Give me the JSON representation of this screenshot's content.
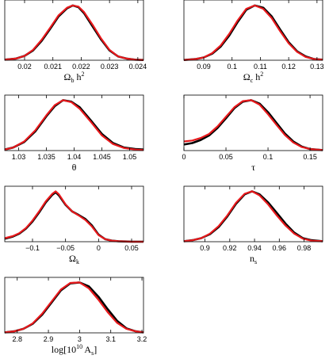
{
  "chart_data": [
    {
      "type": "line",
      "xlabel": "Ω_b h^2",
      "xlabel_parts": [
        {
          "t": "Ω",
          "s": ""
        },
        {
          "t": "b",
          "s": "sub"
        },
        {
          "t": " h",
          "s": ""
        },
        {
          "t": "2",
          "s": "sup"
        }
      ],
      "xlim": [
        0.0193,
        0.0242
      ],
      "xticks": [
        0.02,
        0.021,
        0.022,
        0.023,
        0.024
      ],
      "xtick_labels": [
        "0.02",
        "0.021",
        "0.022",
        "0.023",
        "0.024"
      ],
      "ylim": [
        0,
        1.1
      ],
      "series": [
        {
          "color": "#000000",
          "x": [
            0.0193,
            0.0197,
            0.02,
            0.0203,
            0.0206,
            0.0209,
            0.0212,
            0.0215,
            0.0217,
            0.0219,
            0.0221,
            0.0224,
            0.0227,
            0.023,
            0.0233,
            0.0236,
            0.0239,
            0.0242
          ],
          "y": [
            0.01,
            0.03,
            0.08,
            0.18,
            0.35,
            0.57,
            0.8,
            0.95,
            1.0,
            0.97,
            0.86,
            0.62,
            0.38,
            0.18,
            0.07,
            0.03,
            0.01,
            0.005
          ]
        },
        {
          "color": "#e8191c",
          "x": [
            0.0193,
            0.0197,
            0.02,
            0.0203,
            0.0206,
            0.0209,
            0.0212,
            0.0215,
            0.0217,
            0.0219,
            0.0221,
            0.0224,
            0.0227,
            0.023,
            0.0233,
            0.0236,
            0.0239,
            0.0242
          ],
          "y": [
            0.01,
            0.03,
            0.08,
            0.19,
            0.37,
            0.59,
            0.82,
            0.96,
            1.0,
            0.98,
            0.88,
            0.65,
            0.4,
            0.19,
            0.07,
            0.03,
            0.01,
            0.005
          ]
        }
      ]
    },
    {
      "type": "line",
      "xlabel": "Ω_c h^2",
      "xlabel_parts": [
        {
          "t": "Ω",
          "s": ""
        },
        {
          "t": "c",
          "s": "sub"
        },
        {
          "t": " h",
          "s": ""
        },
        {
          "t": "2",
          "s": "sup"
        }
      ],
      "xlim": [
        0.083,
        0.132
      ],
      "xticks": [
        0.09,
        0.1,
        0.11,
        0.12,
        0.13
      ],
      "xtick_labels": [
        "0.09",
        "0.1",
        "0.11",
        "0.12",
        "0.13"
      ],
      "ylim": [
        0,
        1.1
      ],
      "series": [
        {
          "color": "#000000",
          "x": [
            0.083,
            0.087,
            0.09,
            0.093,
            0.096,
            0.099,
            0.102,
            0.105,
            0.108,
            0.111,
            0.114,
            0.117,
            0.12,
            0.123,
            0.126,
            0.129,
            0.132
          ],
          "y": [
            0.005,
            0.02,
            0.05,
            0.12,
            0.25,
            0.45,
            0.7,
            0.92,
            1.0,
            0.96,
            0.8,
            0.56,
            0.33,
            0.16,
            0.07,
            0.02,
            0.01
          ]
        },
        {
          "color": "#e8191c",
          "x": [
            0.083,
            0.087,
            0.09,
            0.093,
            0.096,
            0.099,
            0.102,
            0.105,
            0.108,
            0.111,
            0.114,
            0.117,
            0.12,
            0.123,
            0.126,
            0.129,
            0.132
          ],
          "y": [
            0.005,
            0.02,
            0.05,
            0.13,
            0.27,
            0.48,
            0.73,
            0.94,
            1.0,
            0.94,
            0.77,
            0.53,
            0.31,
            0.15,
            0.06,
            0.02,
            0.01
          ]
        }
      ]
    },
    {
      "type": "line",
      "xlabel": "θ",
      "xlabel_parts": [
        {
          "t": "θ",
          "s": ""
        }
      ],
      "xlim": [
        1.0275,
        1.0525
      ],
      "xticks": [
        1.03,
        1.035,
        1.04,
        1.045,
        1.05
      ],
      "xtick_labels": [
        "1.03",
        "1.035",
        "1.04",
        "1.045",
        "1.05"
      ],
      "ylim": [
        0,
        1.1
      ],
      "series": [
        {
          "color": "#000000",
          "x": [
            1.0275,
            1.029,
            1.031,
            1.033,
            1.035,
            1.0365,
            1.038,
            1.0395,
            1.041,
            1.043,
            1.045,
            1.047,
            1.049,
            1.051,
            1.0525
          ],
          "y": [
            0.02,
            0.06,
            0.17,
            0.38,
            0.68,
            0.88,
            1.0,
            0.97,
            0.86,
            0.6,
            0.33,
            0.15,
            0.06,
            0.03,
            0.02
          ]
        },
        {
          "color": "#e8191c",
          "x": [
            1.0275,
            1.029,
            1.031,
            1.033,
            1.035,
            1.0365,
            1.038,
            1.0395,
            1.041,
            1.043,
            1.045,
            1.047,
            1.049,
            1.051,
            1.0525
          ],
          "y": [
            0.02,
            0.06,
            0.18,
            0.4,
            0.7,
            0.9,
            1.0,
            0.96,
            0.83,
            0.57,
            0.3,
            0.13,
            0.05,
            0.02,
            0.01
          ]
        }
      ]
    },
    {
      "type": "line",
      "xlabel": "τ",
      "xlabel_parts": [
        {
          "t": "τ",
          "s": ""
        }
      ],
      "xlim": [
        0,
        0.165
      ],
      "xticks": [
        0,
        0.05,
        0.1,
        0.15
      ],
      "xtick_labels": [
        "0",
        "0.05",
        "0.1",
        "0.15"
      ],
      "ylim": [
        0,
        1.1
      ],
      "series": [
        {
          "color": "#000000",
          "x": [
            0,
            0.01,
            0.02,
            0.03,
            0.04,
            0.05,
            0.06,
            0.07,
            0.08,
            0.09,
            0.1,
            0.11,
            0.12,
            0.13,
            0.14,
            0.15,
            0.165
          ],
          "y": [
            0.12,
            0.15,
            0.21,
            0.3,
            0.45,
            0.64,
            0.84,
            0.97,
            1.0,
            0.93,
            0.76,
            0.55,
            0.34,
            0.18,
            0.08,
            0.03,
            0.01
          ]
        },
        {
          "color": "#e8191c",
          "x": [
            0,
            0.01,
            0.02,
            0.03,
            0.04,
            0.05,
            0.06,
            0.07,
            0.08,
            0.09,
            0.1,
            0.11,
            0.12,
            0.13,
            0.14,
            0.15,
            0.165
          ],
          "y": [
            0.18,
            0.2,
            0.25,
            0.33,
            0.48,
            0.67,
            0.86,
            0.98,
            1.0,
            0.91,
            0.72,
            0.51,
            0.31,
            0.16,
            0.07,
            0.03,
            0.01
          ]
        }
      ]
    },
    {
      "type": "line",
      "xlabel": "Ω_k",
      "xlabel_parts": [
        {
          "t": "Ω",
          "s": ""
        },
        {
          "t": "k",
          "s": "sub"
        }
      ],
      "xlim": [
        -0.142,
        0.068
      ],
      "xticks": [
        -0.1,
        -0.05,
        0,
        0.05
      ],
      "xtick_labels": [
        "−0.1",
        "−0.05",
        "0",
        "0.05"
      ],
      "ylim": [
        0,
        1.1
      ],
      "series": [
        {
          "color": "#000000",
          "x": [
            -0.142,
            -0.13,
            -0.12,
            -0.11,
            -0.1,
            -0.09,
            -0.08,
            -0.07,
            -0.065,
            -0.06,
            -0.05,
            -0.04,
            -0.03,
            -0.02,
            -0.01,
            0,
            0.01,
            0.02,
            0.03,
            0.04,
            0.05,
            0.068
          ],
          "y": [
            0.06,
            0.1,
            0.16,
            0.26,
            0.4,
            0.58,
            0.78,
            0.93,
            0.98,
            0.92,
            0.73,
            0.6,
            0.53,
            0.45,
            0.32,
            0.14,
            0.05,
            0.02,
            0.01,
            0.005,
            0.0,
            0.0
          ]
        },
        {
          "color": "#e8191c",
          "x": [
            -0.142,
            -0.13,
            -0.12,
            -0.11,
            -0.1,
            -0.09,
            -0.08,
            -0.07,
            -0.065,
            -0.06,
            -0.05,
            -0.04,
            -0.03,
            -0.02,
            -0.01,
            0,
            0.01,
            0.02,
            0.03,
            0.04,
            0.05,
            0.068
          ],
          "y": [
            0.07,
            0.11,
            0.17,
            0.27,
            0.42,
            0.6,
            0.8,
            0.95,
            1.0,
            0.94,
            0.74,
            0.6,
            0.52,
            0.43,
            0.3,
            0.13,
            0.05,
            0.02,
            0.01,
            0.005,
            0.0,
            0.0
          ]
        }
      ]
    },
    {
      "type": "line",
      "xlabel": "n_s",
      "xlabel_parts": [
        {
          "t": "n",
          "s": ""
        },
        {
          "t": "s",
          "s": "sub"
        }
      ],
      "xlim": [
        0.883,
        0.995
      ],
      "xticks": [
        0.9,
        0.92,
        0.94,
        0.96,
        0.98
      ],
      "xtick_labels": [
        "0.9",
        "0.92",
        "0.94",
        "0.96",
        "0.98"
      ],
      "ylim": [
        0,
        1.1
      ],
      "series": [
        {
          "color": "#000000",
          "x": [
            0.883,
            0.89,
            0.897,
            0.904,
            0.911,
            0.918,
            0.925,
            0.932,
            0.938,
            0.944,
            0.951,
            0.958,
            0.965,
            0.972,
            0.979,
            0.986,
            0.995
          ],
          "y": [
            0.01,
            0.03,
            0.07,
            0.15,
            0.29,
            0.5,
            0.75,
            0.94,
            1.0,
            0.94,
            0.78,
            0.57,
            0.36,
            0.18,
            0.07,
            0.03,
            0.01
          ]
        },
        {
          "color": "#e8191c",
          "x": [
            0.883,
            0.89,
            0.897,
            0.904,
            0.911,
            0.918,
            0.925,
            0.932,
            0.938,
            0.944,
            0.951,
            0.958,
            0.965,
            0.972,
            0.979,
            0.986,
            0.995
          ],
          "y": [
            0.01,
            0.03,
            0.07,
            0.16,
            0.31,
            0.52,
            0.77,
            0.95,
            1.0,
            0.92,
            0.74,
            0.52,
            0.32,
            0.16,
            0.06,
            0.02,
            0.01
          ]
        }
      ]
    },
    {
      "type": "line",
      "xlabel": "log[10^10 A_s]",
      "xlabel_parts": [
        {
          "t": "log[10",
          "s": ""
        },
        {
          "t": "10",
          "s": "sup"
        },
        {
          "t": " A",
          "s": ""
        },
        {
          "t": "s",
          "s": "sub"
        },
        {
          "t": "]",
          "s": ""
        }
      ],
      "xlim": [
        2.76,
        3.205
      ],
      "xticks": [
        2.8,
        2.9,
        3.0,
        3.1,
        3.2
      ],
      "xtick_labels": [
        "2.8",
        "2.9",
        "3",
        "3.1",
        "3.2"
      ],
      "ylim": [
        0,
        1.1
      ],
      "series": [
        {
          "color": "#000000",
          "x": [
            2.76,
            2.79,
            2.82,
            2.85,
            2.88,
            2.91,
            2.94,
            2.97,
            3.0,
            3.03,
            3.06,
            3.09,
            3.12,
            3.15,
            3.18,
            3.205
          ],
          "y": [
            0.01,
            0.03,
            0.08,
            0.18,
            0.36,
            0.6,
            0.84,
            0.98,
            1.0,
            0.92,
            0.72,
            0.47,
            0.24,
            0.09,
            0.03,
            0.01
          ]
        },
        {
          "color": "#e8191c",
          "x": [
            2.76,
            2.79,
            2.82,
            2.85,
            2.88,
            2.91,
            2.94,
            2.97,
            3.0,
            3.03,
            3.06,
            3.09,
            3.12,
            3.15,
            3.18,
            3.205
          ],
          "y": [
            0.01,
            0.03,
            0.08,
            0.19,
            0.38,
            0.62,
            0.86,
            0.99,
            1.0,
            0.88,
            0.66,
            0.41,
            0.2,
            0.08,
            0.03,
            0.01
          ]
        }
      ]
    }
  ]
}
